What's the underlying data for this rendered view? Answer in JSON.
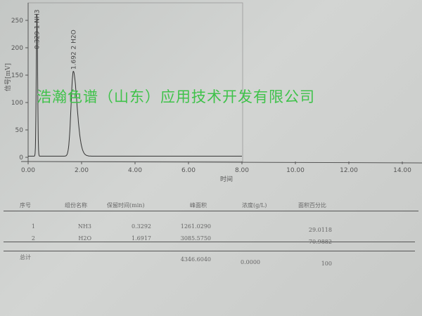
{
  "chart_data": {
    "type": "line",
    "ylabel": "信号[mV]",
    "xlabel": "时间",
    "xlim": [
      0,
      14
    ],
    "ylim": [
      0,
      275
    ],
    "xticks": [
      "0.00",
      "2.00",
      "4.00",
      "6.00",
      "8.00",
      "10.00",
      "12.00",
      "14.00"
    ],
    "yticks": [
      "0",
      "50",
      "100",
      "150",
      "200",
      "250"
    ],
    "grid": false,
    "peaks": [
      {
        "rt": 0.329,
        "height": 260,
        "label": "0.329 1 NH3"
      },
      {
        "rt": 1.692,
        "height": 155,
        "label": "1.692 2 H2O"
      }
    ]
  },
  "watermark": "浩瀚色谱（山东）应用技术开发有限公司",
  "table": {
    "headers": [
      "序号",
      "组份名称",
      "保留时间(min)",
      "峰面积",
      "浓度(g/L)",
      "面积百分比"
    ],
    "rows": [
      [
        "1",
        "NH3",
        "0.3292",
        "1261.0290",
        "",
        "29.0118"
      ],
      [
        "2",
        "H2O",
        "1.6917",
        "3085.5750",
        "",
        "70.9882"
      ]
    ],
    "total": {
      "label": "总计",
      "area": "4346.6040",
      "conc": "0.0000",
      "percent": "100"
    }
  }
}
